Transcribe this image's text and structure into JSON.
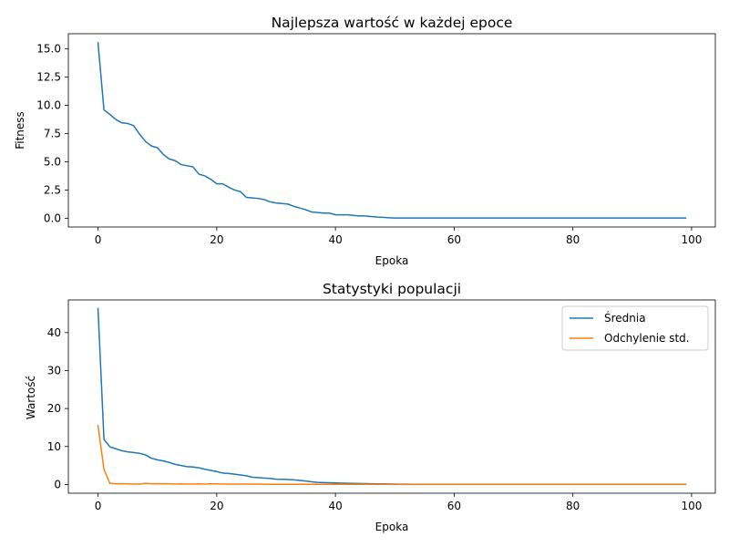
{
  "chart_data": [
    {
      "type": "line",
      "title": "Najlepsza wartość w każdej epoce",
      "xlabel": "Epoka",
      "ylabel": "Fitness",
      "xlim": [
        -5,
        104
      ],
      "ylim": [
        -0.78,
        16.35
      ],
      "xticks": [
        0,
        20,
        40,
        60,
        80,
        100
      ],
      "xtick_labels": [
        "0",
        "20",
        "40",
        "60",
        "80",
        "100"
      ],
      "yticks": [
        0,
        2.5,
        5,
        7.5,
        10,
        12.5,
        15
      ],
      "ytick_labels": [
        "0.0",
        "2.5",
        "5.0",
        "7.5",
        "10.0",
        "12.5",
        "15.0"
      ],
      "grid": false,
      "series": [
        {
          "color": "#1f77b4",
          "x": [
            0,
            1,
            2,
            3,
            4,
            5,
            6,
            7,
            8,
            9,
            10,
            11,
            12,
            13,
            14,
            15,
            16,
            17,
            18,
            19,
            20,
            21,
            22,
            23,
            24,
            25,
            26,
            27,
            28,
            29,
            30,
            31,
            32,
            33,
            34,
            35,
            36,
            37,
            38,
            39,
            40,
            41,
            42,
            43,
            44,
            45,
            46,
            47,
            48,
            49,
            50,
            51,
            52,
            53,
            54,
            55,
            56,
            57,
            58,
            59,
            60,
            61,
            62,
            63,
            64,
            65,
            66,
            67,
            68,
            69,
            70,
            71,
            72,
            73,
            74,
            75,
            76,
            77,
            78,
            79,
            80,
            81,
            82,
            83,
            84,
            85,
            86,
            87,
            88,
            89,
            90,
            91,
            92,
            93,
            94,
            95,
            96,
            97,
            98,
            99
          ],
          "y": [
            15.55,
            9.6,
            9.2,
            8.75,
            8.45,
            8.4,
            8.2,
            7.45,
            6.8,
            6.4,
            6.25,
            5.65,
            5.25,
            5.1,
            4.75,
            4.65,
            4.55,
            3.9,
            3.75,
            3.45,
            3.05,
            3.05,
            2.75,
            2.5,
            2.35,
            1.85,
            1.8,
            1.75,
            1.65,
            1.45,
            1.35,
            1.3,
            1.25,
            1.05,
            0.9,
            0.75,
            0.55,
            0.5,
            0.45,
            0.45,
            0.3,
            0.3,
            0.3,
            0.25,
            0.2,
            0.2,
            0.15,
            0.1,
            0.08,
            0.04,
            0.02,
            0.02,
            0.02,
            0.02,
            0.02,
            0.02,
            0.02,
            0.02,
            0.02,
            0.02,
            0.02,
            0.02,
            0.02,
            0.02,
            0.02,
            0.02,
            0.02,
            0.02,
            0.02,
            0.02,
            0.02,
            0.02,
            0.02,
            0.02,
            0.02,
            0.02,
            0.02,
            0.02,
            0.02,
            0.02,
            0.02,
            0.02,
            0.02,
            0.02,
            0.02,
            0.02,
            0.02,
            0.02,
            0.02,
            0.02,
            0.02,
            0.02,
            0.02,
            0.02,
            0.02,
            0.02,
            0.02,
            0.02,
            0.02,
            0.02
          ]
        }
      ]
    },
    {
      "type": "line",
      "title": "Statystyki populacji",
      "xlabel": "Epoka",
      "ylabel": "Wartość",
      "xlim": [
        -5,
        104
      ],
      "ylim": [
        -2.3,
        48.6
      ],
      "xticks": [
        0,
        20,
        40,
        60,
        80,
        100
      ],
      "xtick_labels": [
        "0",
        "20",
        "40",
        "60",
        "80",
        "100"
      ],
      "yticks": [
        0,
        10,
        20,
        30,
        40
      ],
      "ytick_labels": [
        "0",
        "10",
        "20",
        "30",
        "40"
      ],
      "grid": false,
      "legend": "top-right",
      "series": [
        {
          "name": "Średnia",
          "color": "#1f77b4",
          "x": [
            0,
            1,
            2,
            3,
            4,
            5,
            6,
            7,
            8,
            9,
            10,
            11,
            12,
            13,
            14,
            15,
            16,
            17,
            18,
            19,
            20,
            21,
            22,
            23,
            24,
            25,
            26,
            27,
            28,
            29,
            30,
            31,
            32,
            33,
            34,
            35,
            36,
            37,
            38,
            39,
            40,
            41,
            42,
            43,
            44,
            45,
            46,
            47,
            48,
            49,
            50,
            51,
            52,
            53,
            54,
            55,
            56,
            57,
            58,
            59,
            60,
            61,
            62,
            63,
            64,
            65,
            66,
            67,
            68,
            69,
            70,
            71,
            72,
            73,
            74,
            75,
            76,
            77,
            78,
            79,
            80,
            81,
            82,
            83,
            84,
            85,
            86,
            87,
            88,
            89,
            90,
            91,
            92,
            93,
            94,
            95,
            96,
            97,
            98,
            99
          ],
          "y": [
            46.3,
            11.9,
            9.9,
            9.4,
            8.9,
            8.6,
            8.4,
            8.2,
            7.8,
            6.9,
            6.5,
            6.2,
            5.8,
            5.3,
            5.0,
            4.7,
            4.6,
            4.4,
            4.0,
            3.7,
            3.4,
            3.0,
            2.9,
            2.7,
            2.5,
            2.3,
            1.9,
            1.8,
            1.7,
            1.6,
            1.4,
            1.35,
            1.3,
            1.2,
            1.05,
            0.9,
            0.7,
            0.55,
            0.5,
            0.45,
            0.4,
            0.35,
            0.3,
            0.28,
            0.25,
            0.22,
            0.2,
            0.17,
            0.15,
            0.12,
            0.1,
            0.08,
            0.06,
            0.05,
            0.05,
            0.05,
            0.05,
            0.05,
            0.05,
            0.05,
            0.05,
            0.05,
            0.05,
            0.05,
            0.05,
            0.05,
            0.05,
            0.05,
            0.05,
            0.05,
            0.05,
            0.05,
            0.05,
            0.05,
            0.05,
            0.05,
            0.05,
            0.05,
            0.05,
            0.05,
            0.05,
            0.05,
            0.05,
            0.05,
            0.05,
            0.05,
            0.05,
            0.05,
            0.05,
            0.05,
            0.05,
            0.05,
            0.05,
            0.05,
            0.05,
            0.05,
            0.05,
            0.05,
            0.05,
            0.05
          ]
        },
        {
          "name": "Odchylenie std.",
          "color": "#ff7f0e",
          "x": [
            0,
            1,
            2,
            3,
            4,
            5,
            6,
            7,
            8,
            9,
            10,
            11,
            12,
            13,
            14,
            15,
            16,
            17,
            18,
            19,
            20,
            21,
            22,
            23,
            24,
            25,
            26,
            27,
            28,
            29,
            30,
            31,
            32,
            33,
            34,
            35,
            36,
            37,
            38,
            39,
            40,
            41,
            42,
            43,
            44,
            45,
            46,
            47,
            48,
            49,
            50,
            51,
            52,
            53,
            54,
            55,
            56,
            57,
            58,
            59,
            60,
            61,
            62,
            63,
            64,
            65,
            66,
            67,
            68,
            69,
            70,
            71,
            72,
            73,
            74,
            75,
            76,
            77,
            78,
            79,
            80,
            81,
            82,
            83,
            84,
            85,
            86,
            87,
            88,
            89,
            90,
            91,
            92,
            93,
            94,
            95,
            96,
            97,
            98,
            99
          ],
          "y": [
            15.5,
            4.0,
            0.3,
            0.2,
            0.2,
            0.15,
            0.1,
            0.1,
            0.3,
            0.2,
            0.2,
            0.2,
            0.2,
            0.1,
            0.15,
            0.1,
            0.1,
            0.15,
            0.1,
            0.15,
            0.15,
            0.1,
            0.1,
            0.1,
            0.1,
            0.1,
            0.1,
            0.1,
            0.05,
            0.05,
            0.05,
            0.05,
            0.05,
            0.05,
            0.05,
            0.05,
            0.05,
            0.05,
            0.05,
            0.05,
            0.05,
            0.05,
            0.05,
            0.05,
            0.05,
            0.05,
            0.05,
            0.05,
            0.05,
            0.05,
            0.0,
            0.0,
            0.0,
            0.0,
            0.0,
            0.0,
            0.0,
            0.0,
            0.0,
            0.0,
            0.0,
            0.0,
            0.0,
            0.0,
            0.0,
            0.0,
            0.0,
            0.0,
            0.0,
            0.0,
            0.0,
            0.0,
            0.0,
            0.0,
            0.0,
            0.0,
            0.0,
            0.0,
            0.0,
            0.0,
            0.0,
            0.0,
            0.0,
            0.0,
            0.0,
            0.0,
            0.0,
            0.0,
            0.0,
            0.0,
            0.0,
            0.0,
            0.0,
            0.0,
            0.0,
            0.0,
            0.0,
            0.0,
            0.0,
            0.0
          ]
        }
      ]
    }
  ]
}
